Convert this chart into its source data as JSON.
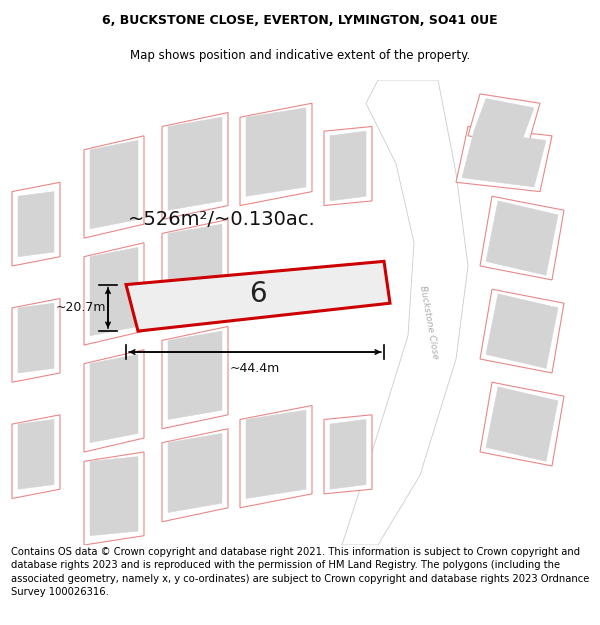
{
  "title_line1": "6, BUCKSTONE CLOSE, EVERTON, LYMINGTON, SO41 0UE",
  "title_line2": "Map shows position and indicative extent of the property.",
  "footer_text": "Contains OS data © Crown copyright and database right 2021. This information is subject to Crown copyright and database rights 2023 and is reproduced with the permission of HM Land Registry. The polygons (including the associated geometry, namely x, y co-ordinates) are subject to Crown copyright and database rights 2023 Ordnance Survey 100026316.",
  "area_label": "~526m²/~0.130ac.",
  "width_label": "~44.4m",
  "height_label": "~20.7m",
  "plot_number": "6",
  "road_label": "Buckstone Close",
  "bg_color": "#ffffff",
  "map_bg_color": "#ffffff",
  "plot_fill": "#eeeeee",
  "plot_edge": "#cc0000",
  "plot_edge_lw": 2.2,
  "building_fill": "#d4d4d4",
  "building_edge": "#d4d4d4",
  "parcel_edge": "#e88888",
  "parcel_fill": "#ffffff",
  "road_fill": "#ffffff",
  "road_edge": "#cccccc",
  "title_fontsize": 9.0,
  "footer_fontsize": 7.2,
  "area_fontsize": 14,
  "dim_fontsize": 9,
  "road_text_fontsize": 6.5,
  "plot_label_fontsize": 20
}
